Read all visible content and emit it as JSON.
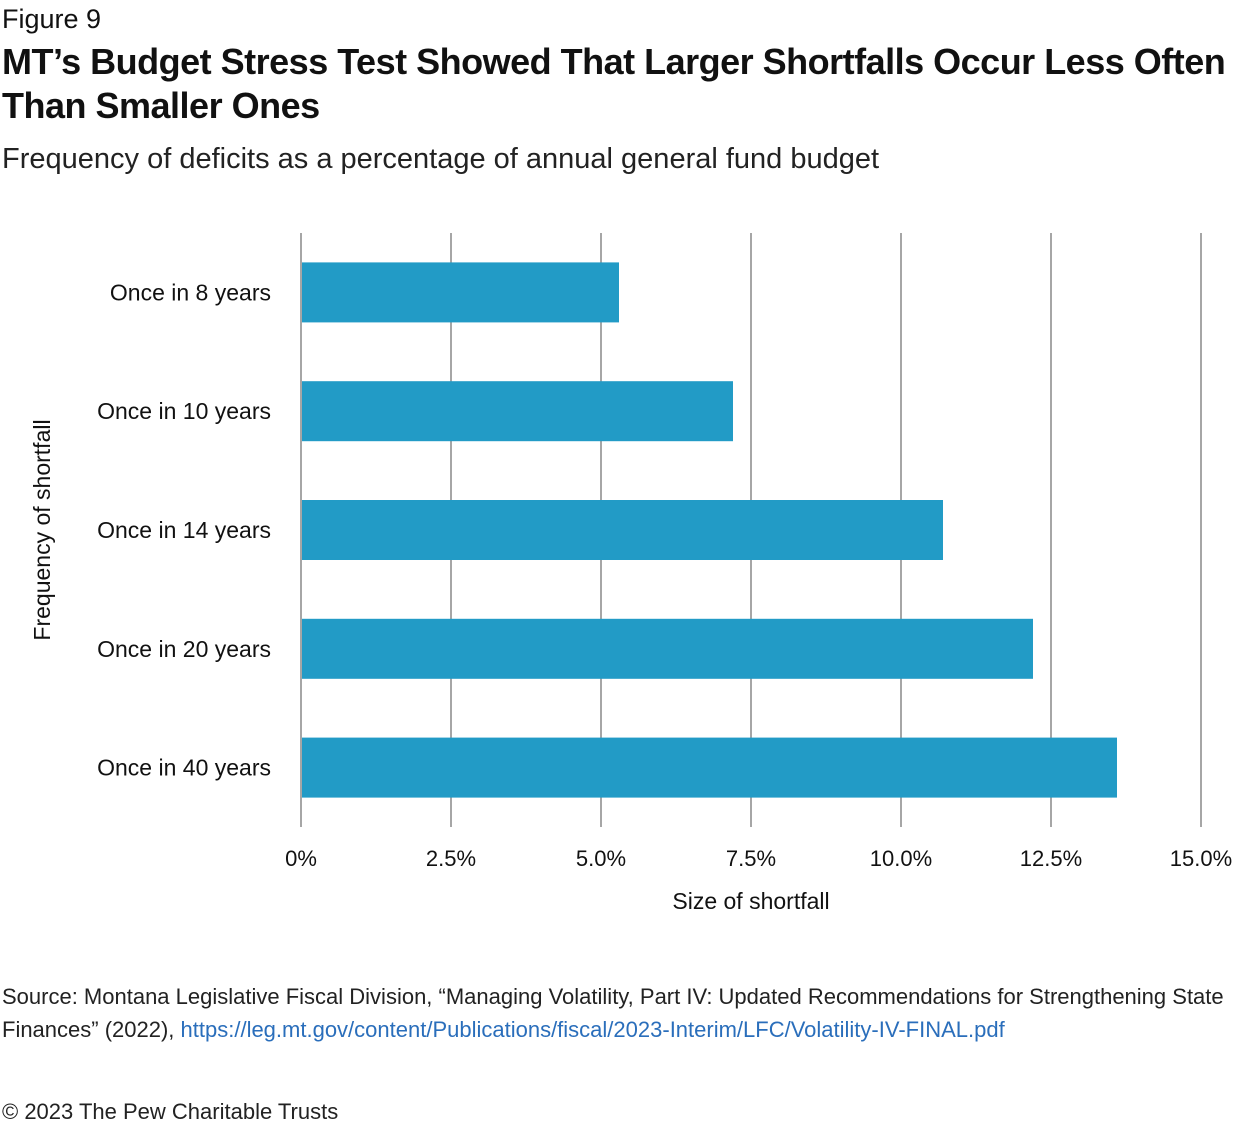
{
  "figure_label": "Figure 9",
  "title": "MT’s Budget Stress Test Showed That Larger Shortfalls Occur Less Often Than Smaller Ones",
  "subtitle": "Frequency of deficits as a percentage of annual general fund budget",
  "chart_data": {
    "type": "bar",
    "orientation": "horizontal",
    "title": "MT’s Budget Stress Test Showed That Larger Shortfalls Occur Less Often Than Smaller Ones",
    "subtitle": "Frequency of deficits as a percentage of annual general fund budget",
    "categories": [
      "Once in 8 years",
      "Once in 10 years",
      "Once in 14 years",
      "Once in 20 years",
      "Once in 40 years"
    ],
    "values": [
      5.3,
      7.2,
      10.7,
      12.2,
      13.6
    ],
    "unit": "%",
    "xlabel": "Size of shortfall",
    "ylabel": "Frequency of shortfall",
    "xlim": [
      0,
      15
    ],
    "xticks": [
      0,
      2.5,
      5,
      7.5,
      10,
      12.5,
      15
    ],
    "xtick_labels": [
      "0%",
      "2.5%",
      "5.0%",
      "7.5%",
      "10.0%",
      "12.5%",
      "15.0%"
    ],
    "grid": "vertical",
    "legend": "none",
    "bar_color": "#229bc6",
    "grid_color": "#a6a6a6"
  },
  "source": {
    "prefix": "Source: Montana Legislative Fiscal Division, “Managing Volatility, Part IV: Updated Recommendations for Strengthening State Finances” (2022), ",
    "link_text": "https://leg.mt.gov/content/Publications/fiscal/2023-Interim/LFC/Volatility-IV-FINAL.pdf"
  },
  "copyright": "© 2023 The Pew Charitable Trusts"
}
